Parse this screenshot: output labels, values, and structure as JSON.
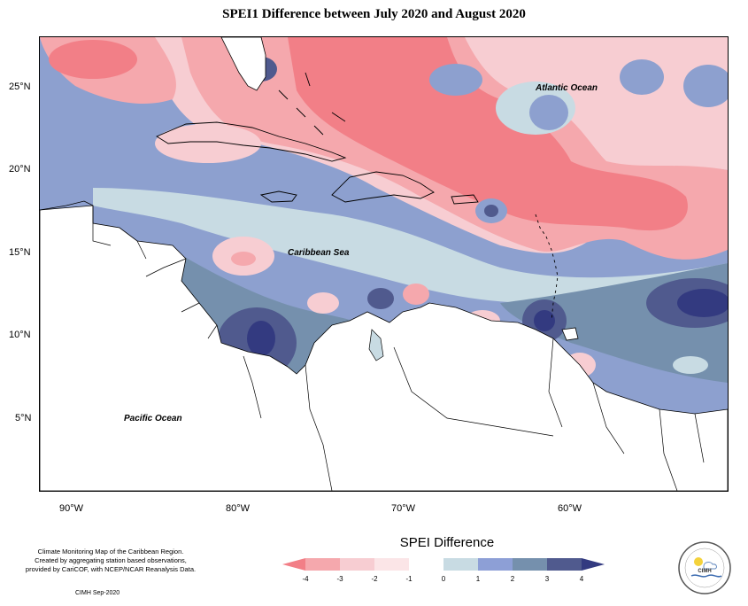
{
  "title": "SPEI1 Difference between July 2020 and August 2020",
  "map": {
    "lat_ticks": [
      "25°N",
      "20°N",
      "15°N",
      "10°N",
      "5°N"
    ],
    "lon_ticks": [
      "90°W",
      "80°W",
      "70°W",
      "60°W"
    ],
    "labels": {
      "atlantic": "Atlantic Ocean",
      "caribbean": "Caribbean Sea",
      "pacific": "Pacific Ocean"
    },
    "extent": {
      "lon_min": -92,
      "lon_max": -50,
      "lat_min": 0.5,
      "lat_max": 28
    }
  },
  "legend": {
    "title": "SPEI Difference",
    "ticks": [
      "-4",
      "-3",
      "-2",
      "-1",
      "0",
      "1",
      "2",
      "3",
      "4"
    ],
    "colors": [
      "#f27f87",
      "#f5a8ad",
      "#f7cdd2",
      "#fbe5e7",
      "#ffffff",
      "#c8dbe3",
      "#8d9fd6",
      "#7590ad",
      "#505a8e",
      "#333a80"
    ]
  },
  "credit": {
    "line1": "Climate Monitoring Map of the Caribbean Region.",
    "line2": "Created by aggregating station based observations,",
    "line3": "provided by CariCOF, with NCEP/NCAR Reanalysis Data.",
    "date": "CIMH Sep-2020"
  },
  "logo": {
    "text": "CIMH"
  }
}
